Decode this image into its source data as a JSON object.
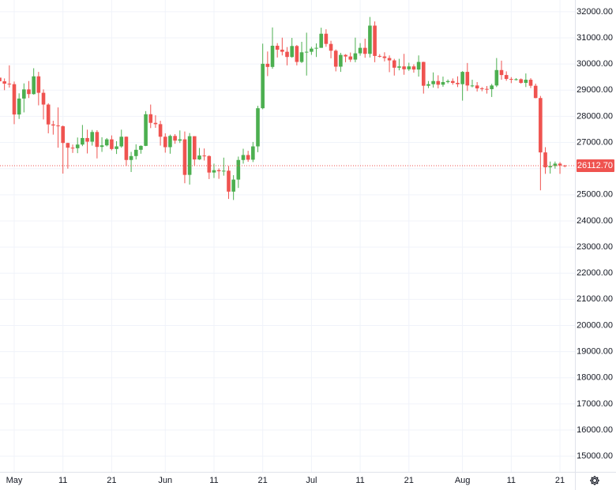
{
  "chart_data": {
    "type": "candlestick",
    "categories": [
      null,
      null,
      null,
      "May",
      null,
      null,
      null,
      null,
      null,
      null,
      null,
      null,
      null,
      "11",
      null,
      null,
      null,
      null,
      null,
      null,
      null,
      null,
      null,
      "21",
      null,
      null,
      null,
      null,
      null,
      null,
      null,
      null,
      null,
      null,
      "Jun",
      null,
      null,
      null,
      null,
      null,
      null,
      null,
      null,
      null,
      "11",
      null,
      null,
      null,
      null,
      null,
      null,
      null,
      null,
      null,
      "21",
      null,
      null,
      null,
      null,
      null,
      null,
      null,
      null,
      null,
      "Jul",
      null,
      null,
      null,
      null,
      null,
      null,
      null,
      null,
      null,
      "11",
      null,
      null,
      null,
      null,
      null,
      null,
      null,
      null,
      null,
      "21",
      null,
      null,
      null,
      null,
      null,
      null,
      null,
      null,
      null,
      null,
      "Aug",
      null,
      null,
      null,
      null,
      null,
      null,
      null,
      null,
      null,
      "11",
      null,
      null,
      null,
      null,
      null,
      null,
      null,
      null,
      null,
      "21",
      null
    ],
    "open": [
      29480,
      29340,
      29250,
      29230,
      28070,
      28680,
      29030,
      28850,
      29530,
      28900,
      28450,
      27690,
      27650,
      27620,
      26980,
      26800,
      26780,
      26920,
      27170,
      27030,
      27400,
      26830,
      26890,
      27120,
      26750,
      26850,
      27220,
      26330,
      26480,
      26720,
      26870,
      28080,
      27750,
      27700,
      27220,
      26820,
      27250,
      27070,
      27120,
      25760,
      27240,
      26350,
      26500,
      26480,
      25850,
      25940,
      25900,
      25920,
      25120,
      25580,
      26330,
      26520,
      26340,
      26850,
      28310,
      30010,
      29890,
      30700,
      30550,
      30470,
      30270,
      30690,
      30080,
      30450,
      30470,
      30590,
      30620,
      31160,
      30770,
      30510,
      29900,
      30350,
      30290,
      30170,
      30410,
      30620,
      30390,
      31470,
      30310,
      30290,
      30230,
      30140,
      29860,
      29910,
      29800,
      29910,
      29790,
      30080,
      29170,
      29230,
      29350,
      29210,
      29310,
      29350,
      29280,
      29230,
      29700,
      29180,
      29180,
      29070,
      29050,
      29040,
      29180,
      29770,
      29580,
      29430,
      29400,
      29420,
      29280,
      29400,
      29170,
      28700,
      26620,
      26050,
      26100,
      26190,
      26120
    ],
    "high": [
      29600,
      29450,
      29950,
      29330,
      28880,
      29260,
      29350,
      29840,
      29700,
      29030,
      28500,
      27830,
      28340,
      27650,
      26990,
      26920,
      27190,
      27670,
      27490,
      27480,
      27470,
      27200,
      27170,
      27270,
      27050,
      27490,
      27230,
      26640,
      26930,
      26890,
      28200,
      28450,
      28040,
      27830,
      27350,
      27300,
      27320,
      27460,
      27420,
      27360,
      27240,
      26790,
      26770,
      26510,
      26190,
      26010,
      26420,
      26100,
      25750,
      26460,
      26760,
      26680,
      27020,
      28400,
      30780,
      30480,
      31400,
      30800,
      31010,
      30650,
      31000,
      30730,
      30850,
      31200,
      30660,
      30790,
      31390,
      31330,
      30890,
      30560,
      30430,
      30380,
      30440,
      31010,
      30800,
      30970,
      31800,
      31630,
      30380,
      30450,
      30330,
      30200,
      30200,
      30390,
      30050,
      29990,
      30330,
      30090,
      29350,
      29680,
      29570,
      29520,
      29410,
      29450,
      29530,
      29730,
      30040,
      29400,
      29310,
      29120,
      29160,
      29240,
      30230,
      30130,
      29720,
      29500,
      29460,
      29450,
      29640,
      29460,
      29250,
      28780,
      26820,
      26270,
      26270,
      26250,
      26140
    ],
    "low": [
      29150,
      29000,
      29100,
      27700,
      27900,
      28150,
      28700,
      28830,
      28420,
      27880,
      27350,
      27300,
      26800,
      25810,
      26000,
      26600,
      26590,
      26860,
      26580,
      26880,
      26390,
      26640,
      26850,
      26700,
      26560,
      26800,
      26100,
      25870,
      26350,
      26570,
      26860,
      27550,
      27560,
      26880,
      26610,
      26570,
      26950,
      26980,
      25440,
      25390,
      26120,
      26330,
      26310,
      25600,
      25640,
      25610,
      25730,
      24840,
      24800,
      25260,
      26190,
      26260,
      26250,
      26630,
      28270,
      29540,
      29820,
      30250,
      30330,
      29950,
      30240,
      29950,
      30040,
      29560,
      30350,
      30270,
      30620,
      30660,
      30220,
      29720,
      29700,
      30070,
      30080,
      30070,
      30320,
      30240,
      30250,
      30070,
      30250,
      30100,
      29690,
      29560,
      29760,
      29590,
      29740,
      29670,
      29520,
      28870,
      29080,
      29100,
      29070,
      29130,
      29260,
      29210,
      29120,
      28600,
      28970,
      29110,
      28950,
      28960,
      28870,
      28740,
      29120,
      29400,
      29360,
      29270,
      29370,
      29250,
      29120,
      29080,
      28690,
      25170,
      25800,
      25810,
      26000,
      25800,
      26050
    ],
    "close": [
      29340,
      29250,
      29230,
      28070,
      28680,
      29030,
      28850,
      29530,
      28900,
      28450,
      27690,
      27650,
      27620,
      26980,
      26800,
      26780,
      26920,
      27170,
      27030,
      27400,
      26830,
      26890,
      27120,
      26750,
      26850,
      27220,
      26330,
      26480,
      26720,
      26870,
      28080,
      27750,
      27700,
      27220,
      26820,
      27250,
      27070,
      27120,
      25760,
      27240,
      26350,
      26500,
      26480,
      25850,
      25940,
      25900,
      25920,
      25120,
      25580,
      26330,
      26520,
      26340,
      26850,
      28310,
      30010,
      29890,
      30700,
      30550,
      30470,
      30270,
      30690,
      30080,
      30450,
      30470,
      30590,
      30620,
      31160,
      30770,
      30510,
      29900,
      30350,
      30290,
      30170,
      30410,
      30620,
      30390,
      31470,
      30310,
      30290,
      30230,
      30140,
      29860,
      29910,
      29800,
      29910,
      29790,
      30080,
      29170,
      29230,
      29350,
      29210,
      29310,
      29350,
      29280,
      29230,
      29700,
      29180,
      29180,
      29070,
      29050,
      29040,
      29180,
      29770,
      29580,
      29430,
      29400,
      29420,
      29280,
      29400,
      29170,
      28700,
      26620,
      26050,
      26100,
      26190,
      26120,
      26112.7
    ],
    "last_price_label": "26112.70",
    "up_color": "#4caf50",
    "down_color": "#ef5350",
    "ylim": [
      14400,
      32450
    ],
    "yticks": [
      {
        "value": 15000,
        "label": "15000.00"
      },
      {
        "value": 16000,
        "label": "16000.00"
      },
      {
        "value": 17000,
        "label": "17000.00"
      },
      {
        "value": 18000,
        "label": "18000.00"
      },
      {
        "value": 19000,
        "label": "19000.00"
      },
      {
        "value": 20000,
        "label": "20000.00"
      },
      {
        "value": 21000,
        "label": "21000.00"
      },
      {
        "value": 22000,
        "label": "22000.00"
      },
      {
        "value": 23000,
        "label": "23000.00"
      },
      {
        "value": 24000,
        "label": "24000.00"
      },
      {
        "value": 25000,
        "label": "25000.00"
      },
      {
        "value": 26000,
        "label": "26000.00"
      },
      {
        "value": 27000,
        "label": "27000.00"
      },
      {
        "value": 28000,
        "label": "28000.00"
      },
      {
        "value": 29000,
        "label": "29000.00"
      },
      {
        "value": 30000,
        "label": "30000.00"
      },
      {
        "value": 31000,
        "label": "31000.00"
      },
      {
        "value": 32000,
        "label": "32000.00"
      }
    ],
    "grid": true
  }
}
